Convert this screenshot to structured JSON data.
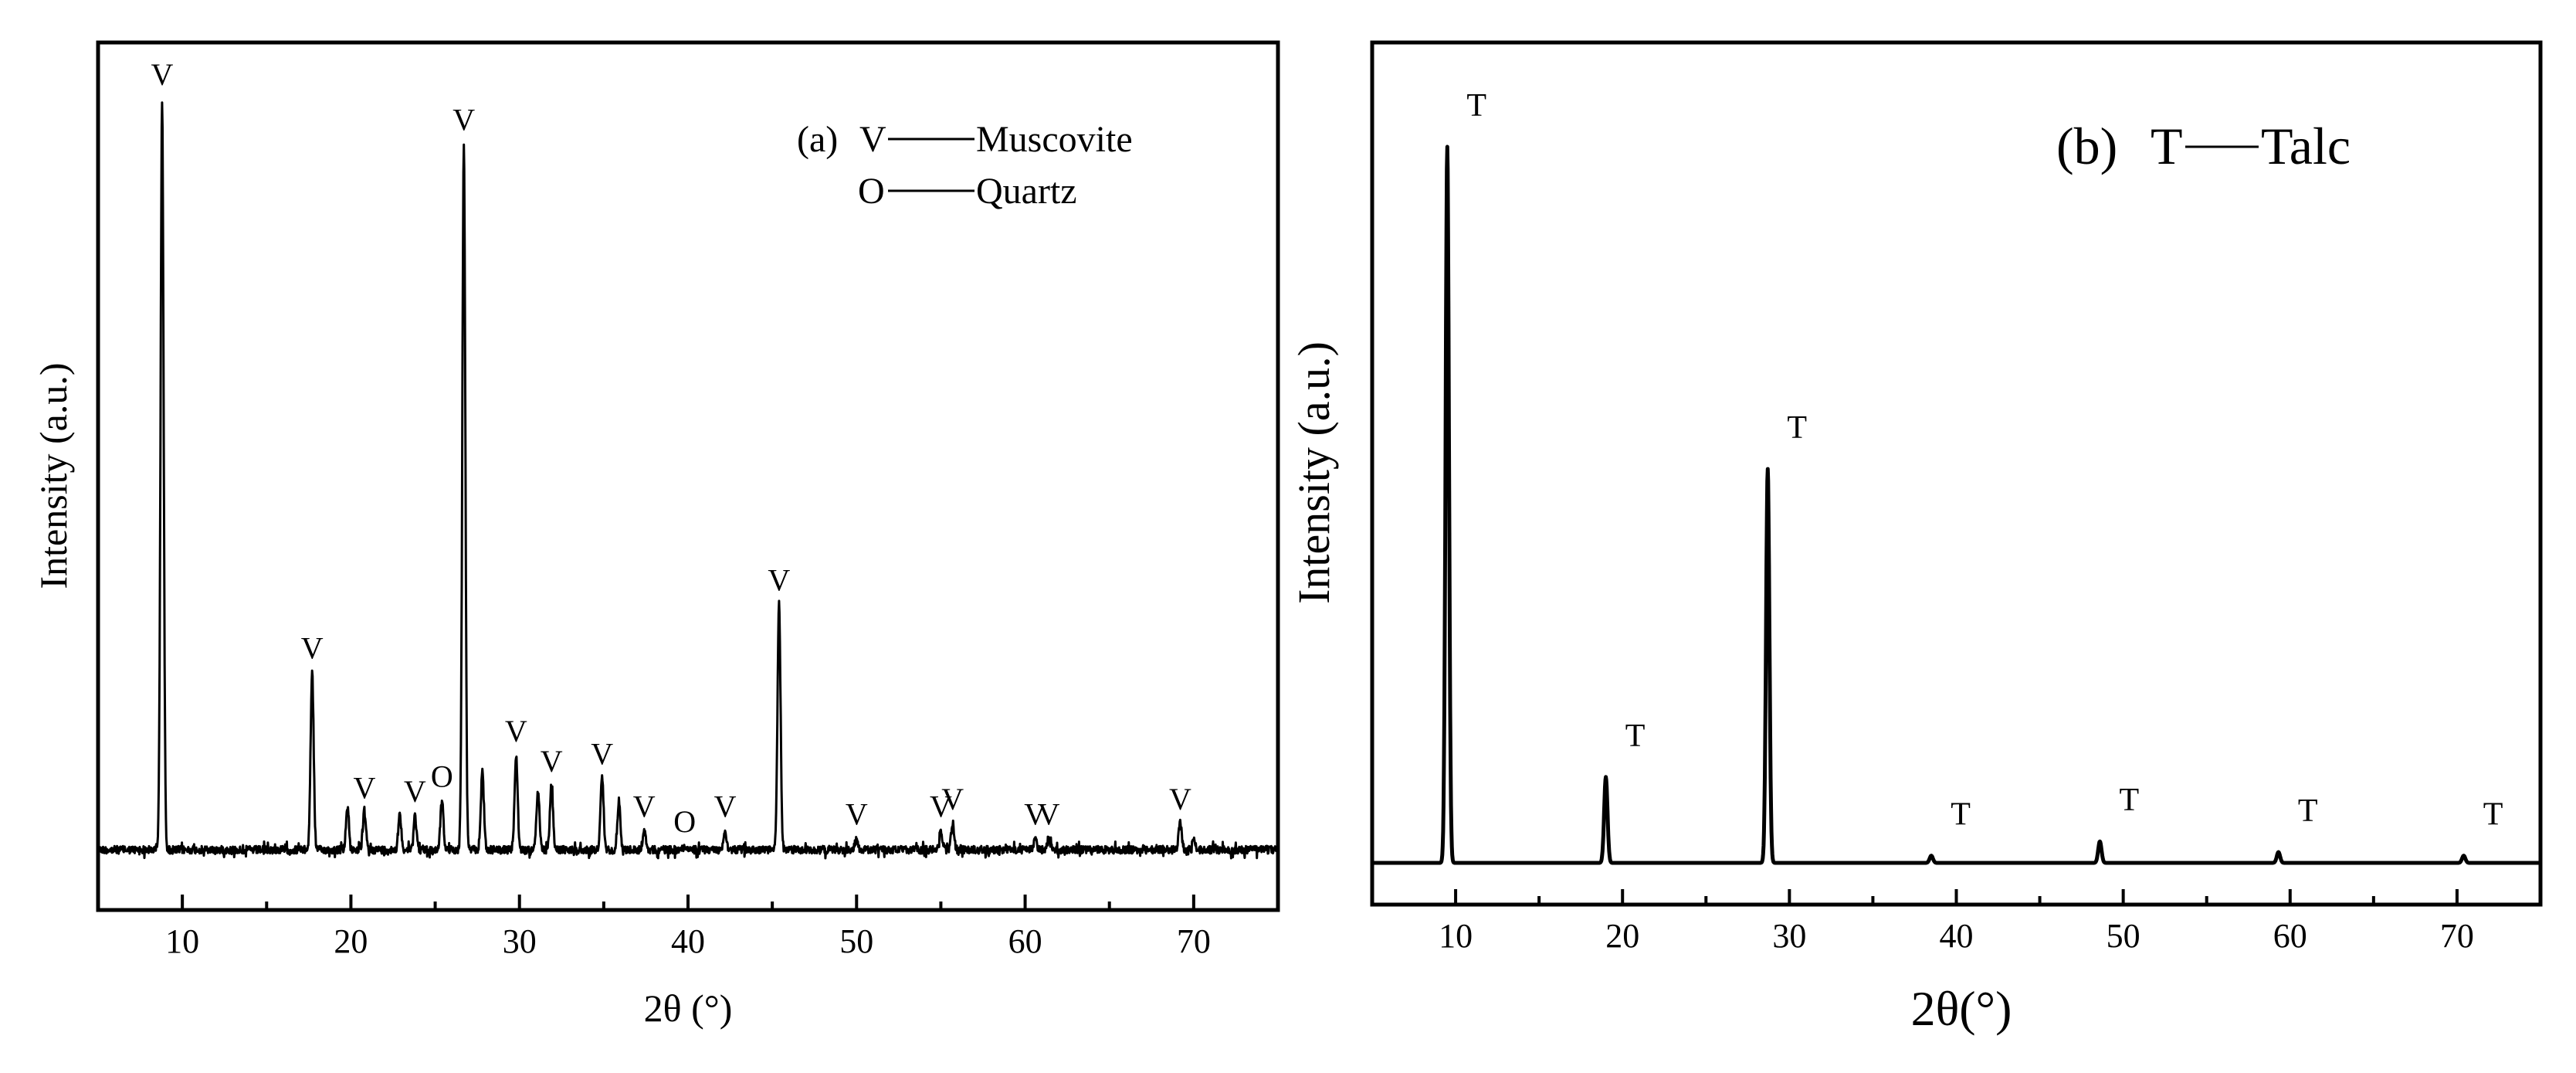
{
  "chart_data": [
    {
      "id": "a",
      "type": "line",
      "title": "",
      "xlabel": "2θ (°)",
      "ylabel": "Intensity (a.u.)",
      "xlim": [
        5,
        75
      ],
      "ylim": [
        0,
        100
      ],
      "x_ticks": [
        10,
        20,
        30,
        40,
        50,
        60,
        70
      ],
      "x_tick_labels": [
        "10",
        "20",
        "30",
        "40",
        "50",
        "60",
        "70"
      ],
      "legend": {
        "panel": "(a)",
        "entries": [
          {
            "symbol": "V",
            "name": "Muscovite"
          },
          {
            "symbol": "O",
            "name": "Quartz"
          }
        ]
      },
      "baseline": 0.5,
      "peaks": [
        {
          "x": 8.8,
          "y": 100,
          "label": "V"
        },
        {
          "x": 17.7,
          "y": 24,
          "label": "V"
        },
        {
          "x": 19.8,
          "y": 6,
          "label": ""
        },
        {
          "x": 20.8,
          "y": 5.5,
          "label": "V"
        },
        {
          "x": 22.9,
          "y": 5,
          "label": ""
        },
        {
          "x": 23.8,
          "y": 5,
          "label": "V"
        },
        {
          "x": 25.4,
          "y": 7,
          "label": "O"
        },
        {
          "x": 26.7,
          "y": 94,
          "label": "V"
        },
        {
          "x": 27.8,
          "y": 11,
          "label": ""
        },
        {
          "x": 29.8,
          "y": 13,
          "label": "V"
        },
        {
          "x": 31.1,
          "y": 8,
          "label": ""
        },
        {
          "x": 31.9,
          "y": 9,
          "label": "V"
        },
        {
          "x": 34.9,
          "y": 10,
          "label": "V"
        },
        {
          "x": 35.9,
          "y": 7,
          "label": ""
        },
        {
          "x": 37.4,
          "y": 3,
          "label": "V"
        },
        {
          "x": 39.8,
          "y": 1,
          "label": "O"
        },
        {
          "x": 42.2,
          "y": 3,
          "label": "V"
        },
        {
          "x": 45.4,
          "y": 33,
          "label": "V"
        },
        {
          "x": 50.0,
          "y": 2,
          "label": "V"
        },
        {
          "x": 55.0,
          "y": 3,
          "label": "V"
        },
        {
          "x": 55.7,
          "y": 4,
          "label": "V"
        },
        {
          "x": 60.6,
          "y": 2,
          "label": "V"
        },
        {
          "x": 61.4,
          "y": 2,
          "label": "V"
        },
        {
          "x": 69.2,
          "y": 4,
          "label": "V"
        },
        {
          "x": 70.0,
          "y": 2,
          "label": ""
        }
      ]
    },
    {
      "id": "b",
      "type": "line",
      "title": "",
      "xlabel": "2θ(°)",
      "ylabel": "Intensity (a.u.)",
      "xlim": [
        5,
        75
      ],
      "ylim": [
        0,
        100
      ],
      "x_ticks": [
        10,
        20,
        30,
        40,
        50,
        60,
        70
      ],
      "x_tick_labels": [
        "10",
        "20",
        "30",
        "40",
        "50",
        "60",
        "70"
      ],
      "legend": {
        "panel": "(b)",
        "entries": [
          {
            "symbol": "T",
            "name": "Talc"
          }
        ]
      },
      "baseline": 0,
      "peaks": [
        {
          "x": 9.5,
          "y": 100,
          "label": "T"
        },
        {
          "x": 19.0,
          "y": 12,
          "label": "T"
        },
        {
          "x": 28.7,
          "y": 55,
          "label": "T"
        },
        {
          "x": 38.5,
          "y": 1,
          "label": "T"
        },
        {
          "x": 48.6,
          "y": 3,
          "label": "T"
        },
        {
          "x": 59.3,
          "y": 1.5,
          "label": "T"
        },
        {
          "x": 70.4,
          "y": 1,
          "label": "T"
        }
      ]
    }
  ]
}
